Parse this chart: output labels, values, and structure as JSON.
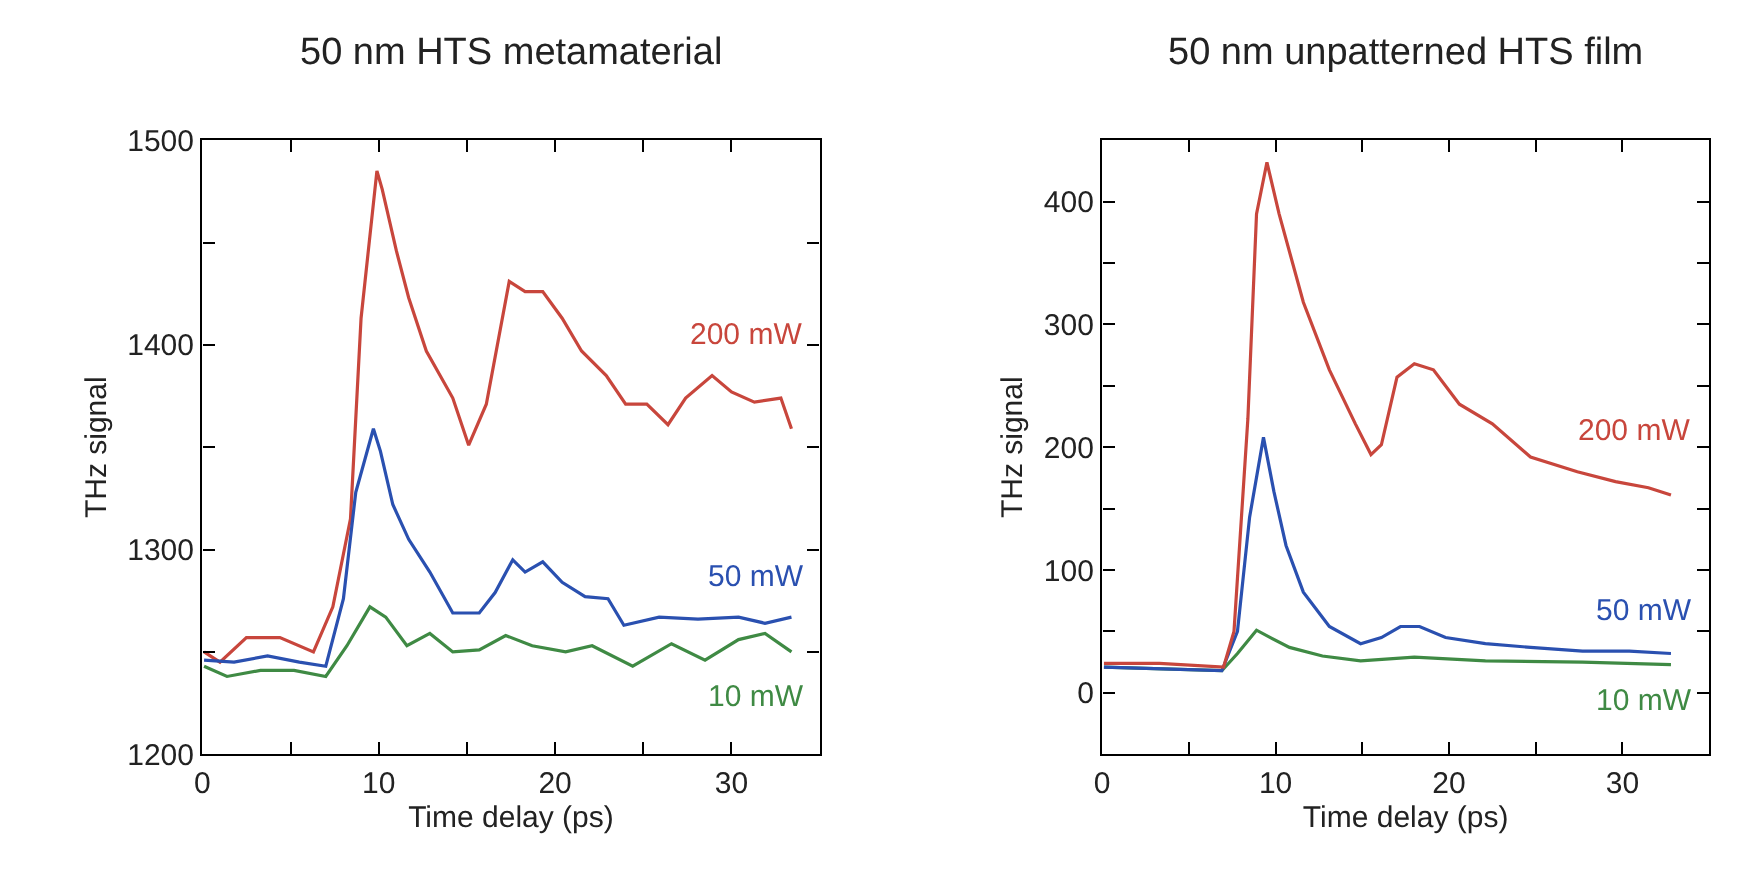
{
  "chart_data": [
    {
      "type": "line",
      "title": "50 nm HTS metamaterial",
      "xlabel": "Time delay (ps)",
      "ylabel": "THz signal",
      "xlim": [
        0,
        35
      ],
      "ylim": [
        1200,
        1500
      ],
      "xticks": [
        0,
        {
          "value": 5,
          "label": null
        },
        10,
        {
          "value": 15,
          "label": null
        },
        20,
        {
          "value": 25,
          "label": null
        },
        30
      ],
      "yticks": [
        1200,
        {
          "value": 1250,
          "label": null
        },
        1300,
        {
          "value": 1350,
          "label": null
        },
        1400,
        {
          "value": 1450,
          "label": null
        },
        1500
      ],
      "marker": "none",
      "line_style": "solid",
      "series": [
        {
          "name": "200 mW",
          "color": "#c8463c",
          "x": [
            0.1,
            1.0,
            2.5,
            4.4,
            6.3,
            7.4,
            8.4,
            9.0,
            9.9,
            10.2,
            11.0,
            11.7,
            12.7,
            14.2,
            15.1,
            16.1,
            17.4,
            18.3,
            19.3,
            20.4,
            21.5,
            22.9,
            24.0,
            25.2,
            26.4,
            27.4,
            28.9,
            30.0,
            31.3,
            32.8,
            33.4
          ],
          "values": [
            1250,
            1245,
            1257,
            1257,
            1250,
            1272,
            1315,
            1413,
            1485,
            1476,
            1446,
            1423,
            1397,
            1374,
            1351,
            1371,
            1431,
            1426,
            1426,
            1413,
            1397,
            1385,
            1371,
            1371,
            1361,
            1374,
            1385,
            1377,
            1372,
            1374,
            1359
          ]
        },
        {
          "name": "50 mW",
          "color": "#2a50b0",
          "x": [
            0.1,
            1.8,
            3.7,
            5.5,
            7.0,
            8.0,
            8.7,
            9.7,
            10.1,
            10.8,
            11.7,
            12.9,
            14.2,
            15.7,
            16.6,
            17.6,
            18.3,
            19.3,
            20.4,
            21.7,
            23.0,
            23.9,
            25.9,
            28.1,
            30.4,
            31.9,
            33.4
          ],
          "values": [
            1246,
            1245,
            1248,
            1245,
            1243,
            1276,
            1328,
            1359,
            1348,
            1322,
            1305,
            1289,
            1269,
            1269,
            1279,
            1295,
            1289,
            1294,
            1284,
            1277,
            1276,
            1263,
            1267,
            1266,
            1267,
            1264,
            1267
          ]
        },
        {
          "name": "10 mW",
          "color": "#3f8a44",
          "x": [
            0.1,
            1.4,
            3.3,
            5.2,
            7.0,
            8.2,
            9.5,
            10.4,
            11.6,
            12.9,
            14.2,
            15.7,
            17.2,
            18.7,
            20.6,
            22.1,
            24.4,
            26.6,
            28.5,
            30.4,
            31.9,
            33.4
          ],
          "values": [
            1243,
            1238,
            1241,
            1241,
            1238,
            1253,
            1272,
            1267,
            1253,
            1259,
            1250,
            1251,
            1258,
            1253,
            1250,
            1253,
            1243,
            1254,
            1246,
            1256,
            1259,
            1250
          ]
        }
      ]
    },
    {
      "type": "line",
      "title": "50 nm unpatterned HTS film",
      "xlabel": "Time delay (ps)",
      "ylabel": "THz signal",
      "xlim": [
        0,
        35
      ],
      "ylim": [
        -50,
        450
      ],
      "xticks": [
        0,
        {
          "value": 5,
          "label": null
        },
        10,
        {
          "value": 15,
          "label": null
        },
        20,
        {
          "value": 25,
          "label": null
        },
        30
      ],
      "yticks": [
        0,
        {
          "value": 50,
          "label": null
        },
        100,
        {
          "value": 150,
          "label": null
        },
        200,
        {
          "value": 250,
          "label": null
        },
        300,
        {
          "value": 350,
          "label": null
        },
        400
      ],
      "marker": "none",
      "line_style": "solid",
      "series": [
        {
          "name": "10 mW",
          "color": "#3f8a44",
          "x": [
            0.1,
            6.9,
            7.8,
            8.9,
            9.7,
            10.8,
            12.7,
            14.9,
            18.0,
            22.1,
            27.7,
            32.8
          ],
          "values": [
            21,
            18,
            32,
            51,
            45,
            37,
            30,
            26,
            29,
            26,
            25,
            23
          ]
        },
        {
          "name": "50 mW",
          "color": "#2a50b0",
          "x": [
            0.1,
            6.9,
            7.8,
            8.5,
            9.3,
            9.9,
            10.6,
            11.6,
            13.1,
            14.9,
            16.1,
            17.2,
            18.3,
            19.8,
            22.1,
            24.7,
            27.7,
            30.4,
            32.8
          ],
          "values": [
            21,
            18,
            50,
            143,
            208,
            164,
            120,
            82,
            54,
            40,
            45,
            54,
            54,
            45,
            40,
            37,
            34,
            34,
            32
          ]
        },
        {
          "name": "200 mW",
          "color": "#c8463c",
          "x": [
            0.1,
            3.3,
            7.0,
            7.6,
            8.4,
            8.9,
            9.5,
            10.2,
            11.6,
            13.1,
            14.6,
            15.5,
            16.1,
            17.0,
            18.0,
            19.1,
            20.6,
            22.5,
            24.7,
            27.4,
            29.6,
            31.5,
            32.8
          ],
          "values": [
            24,
            24,
            21,
            50,
            223,
            390,
            432,
            390,
            318,
            263,
            219,
            194,
            202,
            257,
            268,
            263,
            235,
            219,
            192,
            180,
            172,
            167,
            161
          ]
        }
      ]
    }
  ]
}
